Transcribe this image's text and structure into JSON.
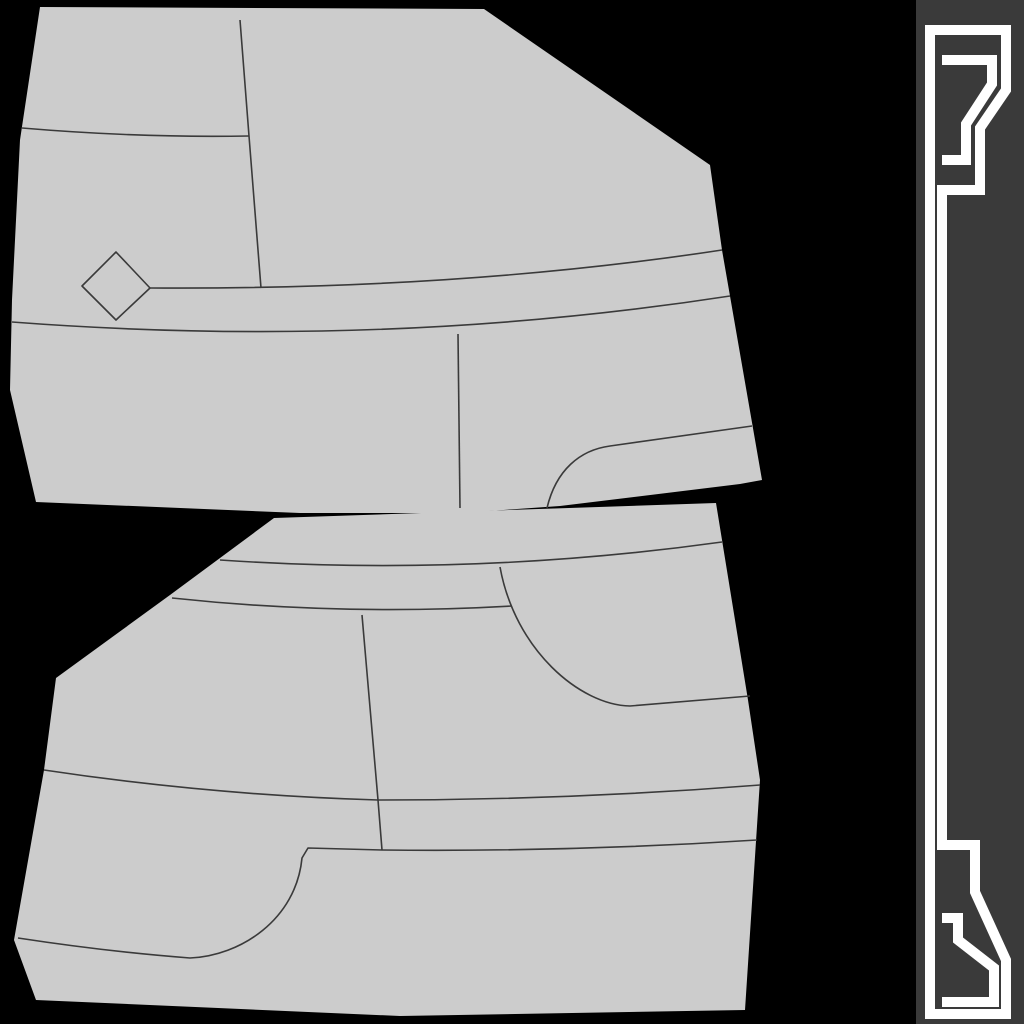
{
  "texture": {
    "colors": {
      "background": "#000000",
      "panel_fill": "#cccccc",
      "seam_line": "#3a3a3a",
      "strip_fill": "#3a3a3a",
      "strip_outline": "#ffffff"
    }
  }
}
